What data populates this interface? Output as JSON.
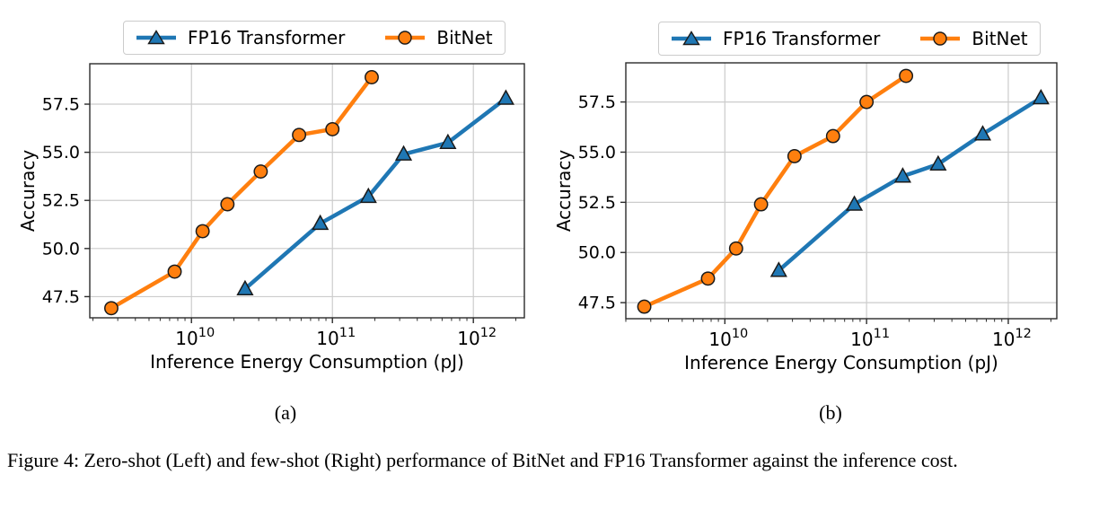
{
  "figure": {
    "caption": "Figure 4: Zero-shot (Left) and few-shot (Right) performance of BitNet and FP16 Transformer against the inference cost.",
    "subplot_labels": [
      "(a)",
      "(b)"
    ]
  },
  "colors": {
    "fp16_transformer": "#1f77b4",
    "bitnet": "#ff7f0e",
    "grid": "#cccccc",
    "spine": "#2b2b2b",
    "marker_edge": "#1a1a1a",
    "legend_border": "#cccccc",
    "text": "#000000"
  },
  "chart_data": [
    {
      "id": "zero-shot",
      "type": "line",
      "title": "",
      "xlabel": "Inference Energy Consumption (pJ)",
      "ylabel": "Accuracy",
      "xscale": "log",
      "xlim": [
        1900000000.0,
        2300000000000.0
      ],
      "ylim": [
        46.4,
        59.6
      ],
      "xticks": [
        10000000000.0,
        100000000000.0,
        1000000000000.0
      ],
      "xtick_labels": [
        "10^10",
        "10^11",
        "10^12"
      ],
      "yticks": [
        47.5,
        50.0,
        52.5,
        55.0,
        57.5
      ],
      "grid": true,
      "legend_position": "upper center above axes",
      "series": [
        {
          "name": "FP16 Transformer",
          "marker": "triangle",
          "color": "#1f77b4",
          "x": [
            24000000000.0,
            82000000000.0,
            180000000000.0,
            320000000000.0,
            660000000000.0,
            1700000000000.0
          ],
          "y": [
            47.9,
            51.3,
            52.7,
            54.9,
            55.5,
            57.8
          ]
        },
        {
          "name": "BitNet",
          "marker": "circle",
          "color": "#ff7f0e",
          "x": [
            2700000000.0,
            7600000000.0,
            12000000000.0,
            18000000000.0,
            31000000000.0,
            58000000000.0,
            100000000000.0,
            190000000000.0
          ],
          "y": [
            46.9,
            48.8,
            50.9,
            52.3,
            54.0,
            55.9,
            56.2,
            58.9
          ]
        }
      ]
    },
    {
      "id": "few-shot",
      "type": "line",
      "title": "",
      "xlabel": "Inference Energy Consumption (pJ)",
      "ylabel": "Accuracy",
      "xscale": "log",
      "xlim": [
        2000000000.0,
        2200000000000.0
      ],
      "ylim": [
        46.7,
        59.45
      ],
      "xticks": [
        10000000000.0,
        100000000000.0,
        1000000000000.0
      ],
      "xtick_labels": [
        "10^10",
        "10^11",
        "10^12"
      ],
      "yticks": [
        47.5,
        50.0,
        52.5,
        55.0,
        57.5
      ],
      "grid": true,
      "legend_position": "upper center above axes",
      "series": [
        {
          "name": "FP16 Transformer",
          "marker": "triangle",
          "color": "#1f77b4",
          "x": [
            24000000000.0,
            82000000000.0,
            180000000000.0,
            320000000000.0,
            660000000000.0,
            1700000000000.0
          ],
          "y": [
            49.1,
            52.4,
            53.8,
            54.4,
            55.9,
            57.7
          ]
        },
        {
          "name": "BitNet",
          "marker": "circle",
          "color": "#ff7f0e",
          "x": [
            2700000000.0,
            7600000000.0,
            12000000000.0,
            18000000000.0,
            31000000000.0,
            58000000000.0,
            100000000000.0,
            190000000000.0
          ],
          "y": [
            47.3,
            48.7,
            50.2,
            52.4,
            54.8,
            55.8,
            57.5,
            58.8
          ]
        }
      ]
    }
  ]
}
